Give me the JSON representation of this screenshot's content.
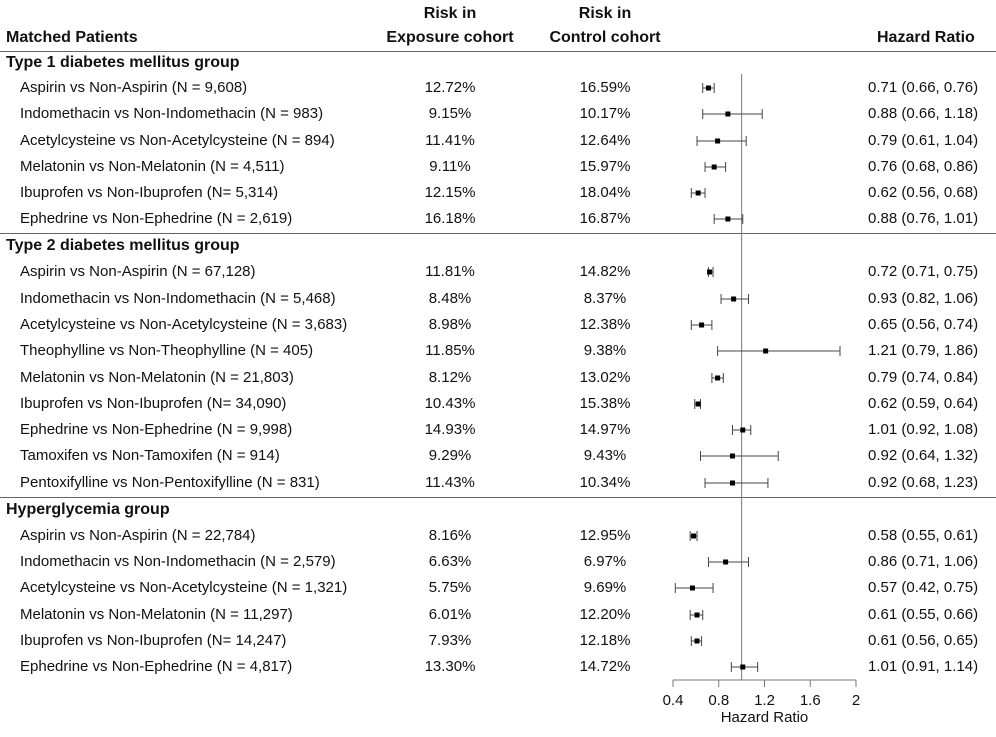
{
  "headers": {
    "patients": "Matched Patients",
    "exposure_line1": "Risk in",
    "exposure_line2": "Exposure cohort",
    "control_line1": "Risk in",
    "control_line2": "Control cohort",
    "hazard_ratio": "Hazard Ratio"
  },
  "groups": [
    {
      "title": "Type 1 diabetes mellitus group",
      "rows": [
        {
          "label": "Aspirin vs Non-Aspirin (N = 9,608)",
          "exposure": "12.72%",
          "control": "16.59%",
          "hr_text": "0.71 (0.66, 0.76)"
        },
        {
          "label": "Indomethacin vs Non-Indomethacin (N = 983)",
          "exposure": "9.15%",
          "control": "10.17%",
          "hr_text": "0.88 (0.66, 1.18)"
        },
        {
          "label": "Acetylcysteine vs Non-Acetylcysteine (N = 894)",
          "exposure": "11.41%",
          "control": "12.64%",
          "hr_text": "0.79 (0.61, 1.04)"
        },
        {
          "label": "Melatonin vs Non-Melatonin (N = 4,511)",
          "exposure": "9.11%",
          "control": "15.97%",
          "hr_text": "0.76 (0.68, 0.86)"
        },
        {
          "label": "Ibuprofen vs Non-Ibuprofen (N=  5,314)",
          "exposure": "12.15%",
          "control": "18.04%",
          "hr_text": "0.62 (0.56, 0.68)"
        },
        {
          "label": "Ephedrine vs Non-Ephedrine (N = 2,619)",
          "exposure": "16.18%",
          "control": "16.87%",
          "hr_text": "0.88 (0.76, 1.01)"
        }
      ]
    },
    {
      "title": "Type 2 diabetes mellitus group",
      "rows": [
        {
          "label": "Aspirin vs Non-Aspirin (N = 67,128)",
          "exposure": "11.81%",
          "control": "14.82%",
          "hr_text": "0.72 (0.71, 0.75)"
        },
        {
          "label": "Indomethacin vs Non-Indomethacin (N = 5,468)",
          "exposure": "8.48%",
          "control": "8.37%",
          "hr_text": "0.93 (0.82, 1.06)"
        },
        {
          "label": "Acetylcysteine vs Non-Acetylcysteine (N = 3,683)",
          "exposure": "8.98%",
          "control": "12.38%",
          "hr_text": "0.65 (0.56, 0.74)"
        },
        {
          "label": "Theophylline vs Non-Theophylline (N = 405)",
          "exposure": "11.85%",
          "control": "9.38%",
          "hr_text": "1.21 (0.79, 1.86)"
        },
        {
          "label": "Melatonin vs Non-Melatonin (N = 21,803)",
          "exposure": "8.12%",
          "control": "13.02%",
          "hr_text": "0.79 (0.74, 0.84)"
        },
        {
          "label": "Ibuprofen vs Non-Ibuprofen (N= 34,090)",
          "exposure": "10.43%",
          "control": "15.38%",
          "hr_text": "0.62 (0.59, 0.64)"
        },
        {
          "label": "Ephedrine vs Non-Ephedrine (N = 9,998)",
          "exposure": "14.93%",
          "control": "14.97%",
          "hr_text": "1.01 (0.92, 1.08)"
        },
        {
          "label": "Tamoxifen vs Non-Tamoxifen (N = 914)",
          "exposure": "9.29%",
          "control": "9.43%",
          "hr_text": "0.92 (0.64, 1.32)"
        },
        {
          "label": "Pentoxifylline vs Non-Pentoxifylline (N = 831)",
          "exposure": "11.43%",
          "control": "10.34%",
          "hr_text": "0.92 (0.68, 1.23)"
        }
      ]
    },
    {
      "title": "Hyperglycemia group",
      "rows": [
        {
          "label": "Aspirin vs Non-Aspirin (N = 22,784)",
          "exposure": "8.16%",
          "control": "12.95%",
          "hr_text": "0.58 (0.55, 0.61)"
        },
        {
          "label": "Indomethacin vs Non-Indomethacin (N = 2,579)",
          "exposure": "6.63%",
          "control": "6.97%",
          "hr_text": "0.86 (0.71, 1.06)"
        },
        {
          "label": "Acetylcysteine vs Non-Acetylcysteine (N = 1,321)",
          "exposure": "5.75%",
          "control": "9.69%",
          "hr_text": "0.57 (0.42, 0.75)"
        },
        {
          "label": "Melatonin vs Non-Melatonin (N = 11,297)",
          "exposure": "6.01%",
          "control": "12.20%",
          "hr_text": "0.61 (0.55, 0.66)"
        },
        {
          "label": "Ibuprofen vs Non-Ibuprofen (N= 14,247)",
          "exposure": "7.93%",
          "control": "12.18%",
          "hr_text": "0.61 (0.56, 0.65)"
        },
        {
          "label": "Ephedrine vs Non-Ephedrine (N = 4,817)",
          "exposure": "13.30%",
          "control": "14.72%",
          "hr_text": "1.01 (0.91, 1.14)"
        }
      ]
    }
  ],
  "chart_data": {
    "type": "forest",
    "xlabel": "Hazard Ratio",
    "xlim": [
      0.4,
      2.0
    ],
    "ticks": [
      0.4,
      0.8,
      1.2,
      1.6,
      2
    ],
    "tick_labels": [
      "0.4",
      "0.8",
      "1.2",
      "1.6",
      "2"
    ],
    "reference_line": 1.0,
    "series": [
      {
        "name": "Type 1 diabetes mellitus group",
        "points": [
          {
            "hr": 0.71,
            "lo": 0.66,
            "hi": 0.76
          },
          {
            "hr": 0.88,
            "lo": 0.66,
            "hi": 1.18
          },
          {
            "hr": 0.79,
            "lo": 0.61,
            "hi": 1.04
          },
          {
            "hr": 0.76,
            "lo": 0.68,
            "hi": 0.86
          },
          {
            "hr": 0.62,
            "lo": 0.56,
            "hi": 0.68
          },
          {
            "hr": 0.88,
            "lo": 0.76,
            "hi": 1.01
          }
        ]
      },
      {
        "name": "Type 2 diabetes mellitus group",
        "points": [
          {
            "hr": 0.72,
            "lo": 0.71,
            "hi": 0.75
          },
          {
            "hr": 0.93,
            "lo": 0.82,
            "hi": 1.06
          },
          {
            "hr": 0.65,
            "lo": 0.56,
            "hi": 0.74
          },
          {
            "hr": 1.21,
            "lo": 0.79,
            "hi": 1.86
          },
          {
            "hr": 0.79,
            "lo": 0.74,
            "hi": 0.84
          },
          {
            "hr": 0.62,
            "lo": 0.59,
            "hi": 0.64
          },
          {
            "hr": 1.01,
            "lo": 0.92,
            "hi": 1.08
          },
          {
            "hr": 0.92,
            "lo": 0.64,
            "hi": 1.32
          },
          {
            "hr": 0.92,
            "lo": 0.68,
            "hi": 1.23
          }
        ]
      },
      {
        "name": "Hyperglycemia group",
        "points": [
          {
            "hr": 0.58,
            "lo": 0.55,
            "hi": 0.61
          },
          {
            "hr": 0.86,
            "lo": 0.71,
            "hi": 1.06
          },
          {
            "hr": 0.57,
            "lo": 0.42,
            "hi": 0.75
          },
          {
            "hr": 0.61,
            "lo": 0.55,
            "hi": 0.66
          },
          {
            "hr": 0.61,
            "lo": 0.56,
            "hi": 0.65
          },
          {
            "hr": 1.01,
            "lo": 0.91,
            "hi": 1.14
          }
        ]
      }
    ]
  }
}
